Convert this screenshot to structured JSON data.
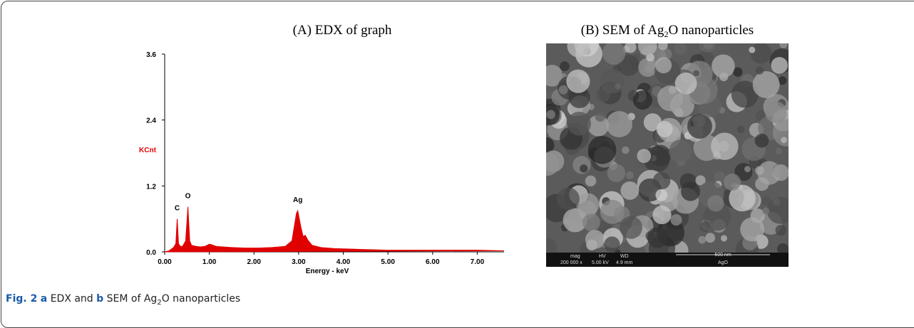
{
  "chart_data": {
    "type": "area",
    "title": "(A) EDX of graph",
    "x_label": "Energy - keV",
    "y_label": "KCnt",
    "color": "#e00000",
    "xlim": [
      0,
      7.6
    ],
    "ylim": [
      0,
      3.6
    ],
    "xticks": [
      {
        "value": 0,
        "label": "0.00"
      },
      {
        "value": 1,
        "label": "1.00"
      },
      {
        "value": 2,
        "label": "2.00"
      },
      {
        "value": 3,
        "label": "3.00"
      },
      {
        "value": 4,
        "label": "4.00"
      },
      {
        "value": 5,
        "label": "5.00"
      },
      {
        "value": 6,
        "label": "6.00"
      },
      {
        "value": 7,
        "label": "7.00"
      }
    ],
    "yticks": [
      {
        "value": 0,
        "label": "0.0"
      },
      {
        "value": 1.2,
        "label": "1.2"
      },
      {
        "value": 2.4,
        "label": "2.4"
      },
      {
        "value": 3.6,
        "label": "3.6"
      }
    ],
    "x": [
      0.0,
      0.1,
      0.2,
      0.25,
      0.28,
      0.31,
      0.35,
      0.4,
      0.47,
      0.52,
      0.56,
      0.6,
      0.7,
      0.8,
      0.9,
      1.0,
      1.05,
      1.15,
      1.3,
      1.5,
      1.8,
      2.1,
      2.4,
      2.7,
      2.85,
      2.95,
      2.98,
      3.05,
      3.1,
      3.15,
      3.2,
      3.3,
      3.5,
      3.8,
      4.2,
      4.6,
      5.0,
      5.5,
      6.0,
      6.5,
      7.0,
      7.6
    ],
    "values": [
      0,
      0.02,
      0.08,
      0.15,
      0.6,
      0.15,
      0.1,
      0.1,
      0.2,
      0.82,
      0.2,
      0.12,
      0.1,
      0.09,
      0.1,
      0.14,
      0.13,
      0.1,
      0.09,
      0.08,
      0.07,
      0.07,
      0.08,
      0.1,
      0.2,
      0.7,
      0.75,
      0.45,
      0.28,
      0.3,
      0.22,
      0.12,
      0.08,
      0.06,
      0.05,
      0.04,
      0.03,
      0.03,
      0.03,
      0.03,
      0.03,
      0.02
    ],
    "annotations": [
      {
        "text": "C",
        "x": 0.28,
        "y": 0.6
      },
      {
        "text": "O",
        "x": 0.52,
        "y": 0.82
      },
      {
        "text": "Ag",
        "x": 2.98,
        "y": 0.75
      }
    ]
  },
  "panel_b": {
    "title": {
      "before": "(B) SEM of Ag",
      "sub": "2",
      "after": "O nanoparticles"
    },
    "info_bar": {
      "mag_label": "mag",
      "hv_label": "HV",
      "wd_label": "WD",
      "mag": "200 000 x",
      "hv": "5.00 kV",
      "wd": "4.9 mm",
      "scale": "500 nm",
      "sample": "AgO"
    }
  },
  "caption": {
    "label": "Fig. 2",
    "a": "a",
    "text1": "EDX and",
    "b": "b",
    "text2": "SEM of Ag",
    "sub": "2",
    "text3": "O nanoparticles"
  }
}
